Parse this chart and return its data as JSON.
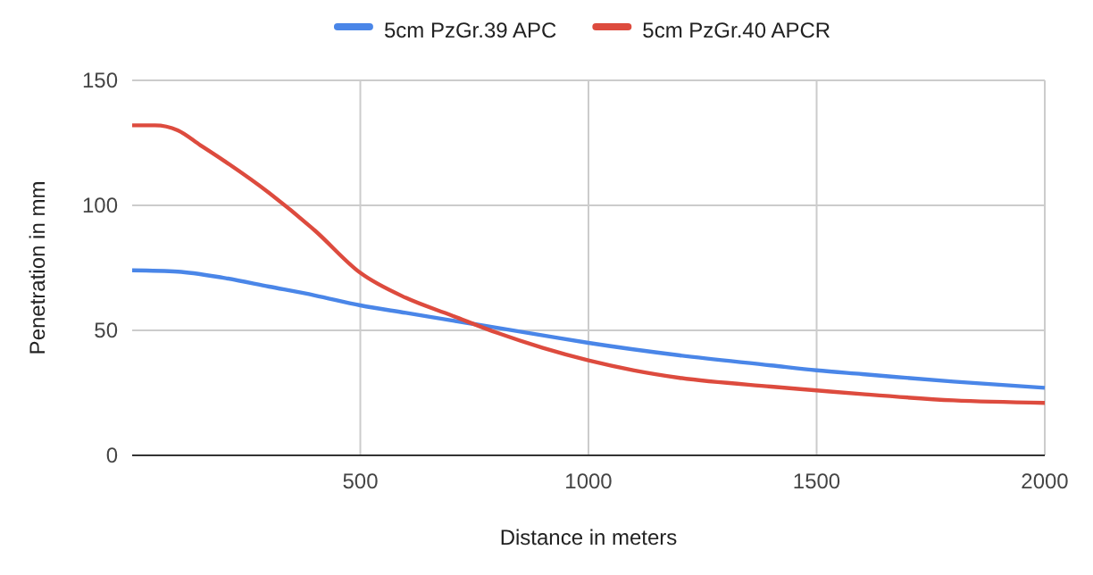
{
  "chart_data": {
    "type": "line",
    "xlabel": "Distance in meters",
    "ylabel": "Penetration in mm",
    "xlim": [
      0,
      2000
    ],
    "xticks": [
      500,
      1000,
      1500,
      2000
    ],
    "ylim": [
      0,
      150
    ],
    "yticks": [
      0,
      50,
      100,
      150
    ],
    "grid": true,
    "legend": "top",
    "marker": "none",
    "line_style": "solid",
    "series": [
      {
        "name": "5cm PzGr.39 APC",
        "color": "#4a86e8",
        "x": [
          0,
          100,
          200,
          300,
          400,
          500,
          600,
          700,
          800,
          900,
          1000,
          1200,
          1400,
          1500,
          1600,
          1800,
          2000
        ],
        "values": [
          74,
          73.5,
          71,
          67.5,
          64,
          60,
          57,
          54,
          51,
          48,
          45,
          40,
          36,
          34,
          32.5,
          29.5,
          27
        ]
      },
      {
        "name": "5cm PzGr.40 APCR",
        "color": "#dd4b3e",
        "x": [
          0,
          50,
          100,
          150,
          200,
          300,
          400,
          500,
          600,
          700,
          800,
          900,
          1000,
          1100,
          1200,
          1400,
          1500,
          1600,
          1800,
          2000
        ],
        "values": [
          132,
          132,
          130,
          124,
          118,
          105,
          90,
          73,
          63,
          56,
          49,
          43,
          38,
          34,
          31,
          27.5,
          26,
          24.5,
          22,
          21
        ]
      }
    ]
  }
}
